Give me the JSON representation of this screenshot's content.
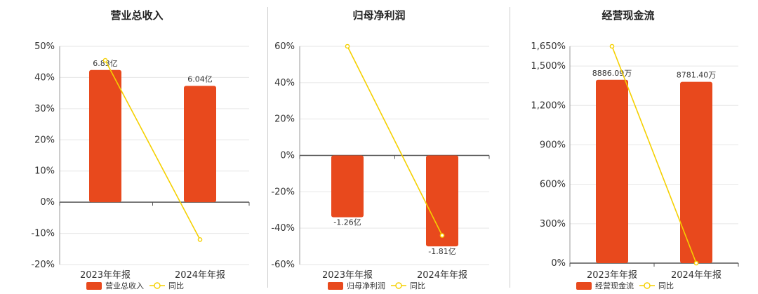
{
  "colors": {
    "bar": "#e8491d",
    "line": "#f5d000",
    "axis": "#555555",
    "grid": "#e6e6e6",
    "divider": "#cccccc"
  },
  "chart_data": [
    {
      "type": "bar",
      "title": "营业总收入",
      "categories": [
        "2023年年报",
        "2024年年报"
      ],
      "yticks": [
        "-20%",
        "-10%",
        "0%",
        "10%",
        "20%",
        "30%",
        "40%",
        "50%"
      ],
      "ylim": [
        -20,
        50
      ],
      "series": [
        {
          "name": "营业总收入",
          "kind": "bar",
          "values": [
            42.4,
            37.3
          ],
          "labels": [
            "6.83亿",
            "6.04亿"
          ]
        },
        {
          "name": "同比",
          "kind": "line",
          "values": [
            45.5,
            -12.0
          ]
        }
      ],
      "legend": [
        "营业总收入",
        "同比"
      ],
      "legend_position": "bottom"
    },
    {
      "type": "bar",
      "title": "归母净利润",
      "categories": [
        "2023年年报",
        "2024年年报"
      ],
      "yticks": [
        "-60%",
        "-40%",
        "-20%",
        "0%",
        "20%",
        "40%",
        "60%"
      ],
      "ylim": [
        -60,
        60
      ],
      "series": [
        {
          "name": "归母净利润",
          "kind": "bar",
          "values": [
            -34.0,
            -50.0
          ],
          "labels": [
            "-1.26亿",
            "-1.81亿"
          ]
        },
        {
          "name": "同比",
          "kind": "line",
          "values": [
            60.0,
            -44.0
          ]
        }
      ],
      "legend": [
        "归母净利润",
        "同比"
      ],
      "legend_position": "bottom"
    },
    {
      "type": "bar",
      "title": "经营现金流",
      "categories": [
        "2023年年报",
        "2024年年报"
      ],
      "yticks": [
        "0%",
        "300%",
        "600%",
        "900%",
        "1,200%",
        "1,500%",
        "1,650%"
      ],
      "ylim": [
        0,
        1650
      ],
      "series": [
        {
          "name": "经营现金流",
          "kind": "bar",
          "values": [
            1395,
            1380
          ],
          "labels": [
            "8886.09万",
            "8781.40万"
          ]
        },
        {
          "name": "同比",
          "kind": "line",
          "values": [
            1650,
            0
          ]
        }
      ],
      "legend": [
        "经营现金流",
        "同比"
      ],
      "legend_position": "bottom"
    }
  ]
}
